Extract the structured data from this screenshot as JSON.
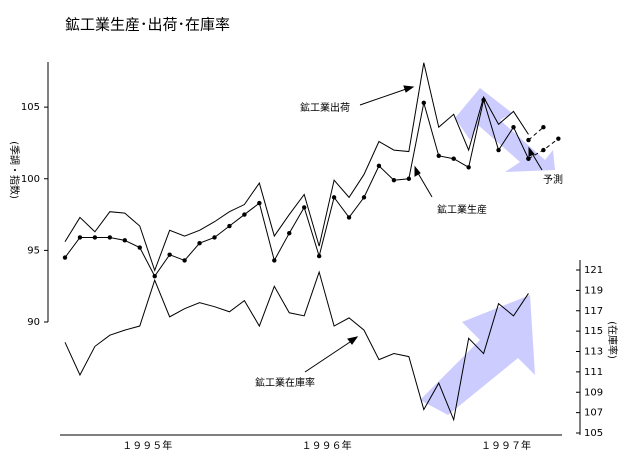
{
  "chart_data": {
    "type": "line",
    "title": "鉱工業生産･出荷･在庫率",
    "y_axis_label": "(季調・指数)",
    "y2_axis_label": "(在庫率)",
    "x_axis_labels": [
      "１９９５年",
      "１９９６年",
      "１９９７年"
    ],
    "ylim": [
      90,
      108.5
    ],
    "yticks": [
      90,
      95,
      100,
      105
    ],
    "y2lim": [
      105,
      121
    ],
    "y2ticks": [
      105,
      107,
      109,
      111,
      113,
      115,
      117,
      119,
      121
    ],
    "series": [
      {
        "name": "鉱工業生産",
        "color": "#000000",
        "markers": true,
        "values": [
          94.5,
          95.9,
          95.9,
          95.9,
          95.7,
          95.2,
          93.2,
          94.7,
          94.3,
          95.5,
          95.9,
          96.7,
          97.5,
          98.3,
          94.3,
          96.2,
          98.0,
          94.6,
          98.7,
          97.3,
          98.7,
          100.9,
          99.9,
          100.0,
          105.3,
          101.6,
          101.4,
          100.8,
          105.5,
          102.0,
          103.6,
          101.4,
          null,
          null
        ]
      },
      {
        "name": "鉱工業出荷",
        "color": "#000000",
        "markers": false,
        "values": [
          95.6,
          97.3,
          96.3,
          97.7,
          97.6,
          96.7,
          93.6,
          96.4,
          96.0,
          96.4,
          97.0,
          97.7,
          98.2,
          99.7,
          96.0,
          97.5,
          98.9,
          95.3,
          99.9,
          98.7,
          100.3,
          102.6,
          102.0,
          101.9,
          108.1,
          103.6,
          104.5,
          102.0,
          105.7,
          103.8,
          104.7,
          103.1,
          null,
          null
        ]
      },
      {
        "name": "鉱工業在庫率",
        "color": "#000000",
        "markers": false,
        "axis": "y2",
        "values": [
          113.9,
          110.7,
          113.5,
          114.6,
          115.1,
          115.5,
          120.0,
          116.4,
          117.2,
          117.8,
          117.4,
          116.9,
          118.0,
          115.5,
          119.4,
          116.8,
          116.5,
          120.8,
          115.5,
          116.3,
          115.1,
          112.2,
          112.8,
          112.5,
          107.3,
          109.9,
          106.3,
          114.3,
          112.8,
          117.7,
          116.5,
          118.7,
          null,
          null
        ]
      },
      {
        "name": "予測",
        "color": "#000000",
        "markers": true,
        "dashed": true,
        "values": [
          null,
          null,
          null,
          null,
          null,
          null,
          null,
          null,
          null,
          null,
          null,
          null,
          null,
          null,
          null,
          null,
          null,
          null,
          null,
          null,
          null,
          null,
          null,
          null,
          null,
          null,
          null,
          null,
          null,
          null,
          null,
          101.4,
          102.0,
          102.8
        ]
      },
      {
        "name": "予測",
        "color": "#000000",
        "markers": true,
        "dashed": true,
        "values": [
          null,
          null,
          null,
          null,
          null,
          null,
          null,
          null,
          null,
          null,
          null,
          null,
          null,
          null,
          null,
          null,
          null,
          null,
          null,
          null,
          null,
          null,
          null,
          null,
          null,
          null,
          null,
          null,
          null,
          null,
          null,
          102.7,
          103.6,
          null
        ]
      }
    ]
  }
}
